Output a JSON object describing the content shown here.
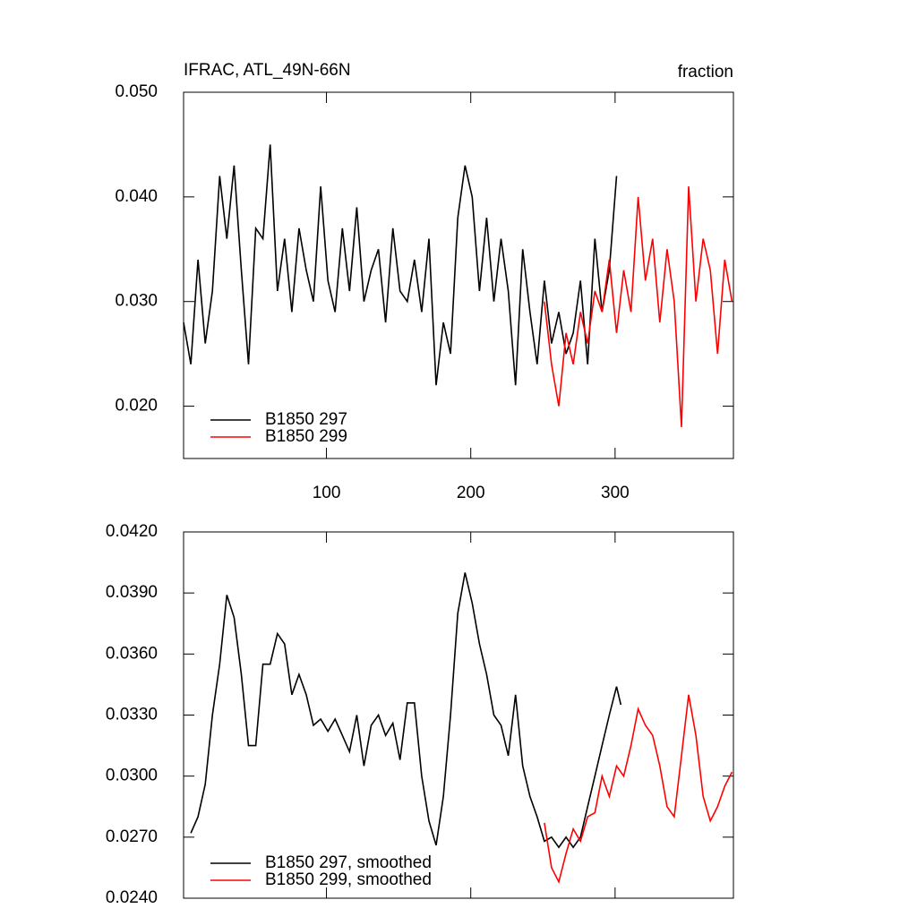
{
  "chart_data": [
    {
      "type": "line",
      "title": "IFRAC, ATL_49N-66N",
      "subtitle": "fraction",
      "xlim": [
        1,
        382
      ],
      "xticks": [
        100,
        200,
        300
      ],
      "ylim": [
        0.015,
        0.05
      ],
      "yticks": [
        {
          "value": 0.02,
          "label": "0.020"
        },
        {
          "value": 0.03,
          "label": "0.030"
        },
        {
          "value": 0.04,
          "label": "0.040"
        },
        {
          "value": 0.05,
          "label": "0.050"
        }
      ],
      "series": [
        {
          "name": "B1850 297",
          "color": "#000000",
          "x": [
            1,
            6,
            11,
            16,
            21,
            26,
            31,
            36,
            41,
            46,
            51,
            56,
            61,
            66,
            71,
            76,
            81,
            86,
            91,
            96,
            101,
            106,
            111,
            116,
            121,
            126,
            131,
            136,
            141,
            146,
            151,
            156,
            161,
            166,
            171,
            176,
            181,
            186,
            191,
            196,
            201,
            206,
            211,
            216,
            221,
            226,
            231,
            236,
            241,
            246,
            251,
            256,
            261,
            266,
            271,
            276,
            281,
            286,
            291,
            296,
            301
          ],
          "values": [
            0.028,
            0.024,
            0.034,
            0.026,
            0.031,
            0.042,
            0.036,
            0.043,
            0.033,
            0.024,
            0.037,
            0.036,
            0.045,
            0.031,
            0.036,
            0.029,
            0.037,
            0.033,
            0.03,
            0.041,
            0.032,
            0.029,
            0.037,
            0.031,
            0.039,
            0.03,
            0.033,
            0.035,
            0.028,
            0.037,
            0.031,
            0.03,
            0.034,
            0.029,
            0.036,
            0.022,
            0.028,
            0.025,
            0.038,
            0.043,
            0.04,
            0.031,
            0.038,
            0.03,
            0.036,
            0.031,
            0.022,
            0.035,
            0.029,
            0.024,
            0.032,
            0.026,
            0.029,
            0.025,
            0.027,
            0.032,
            0.024,
            0.036,
            0.029,
            0.033,
            0.042
          ]
        },
        {
          "name": "B1850 299",
          "color": "#ff0000",
          "x": [
            251,
            256,
            261,
            266,
            271,
            276,
            281,
            286,
            291,
            296,
            301,
            306,
            311,
            316,
            321,
            326,
            331,
            336,
            341,
            346,
            351,
            356,
            361,
            366,
            371,
            376,
            381
          ],
          "values": [
            0.03,
            0.024,
            0.02,
            0.027,
            0.024,
            0.029,
            0.026,
            0.031,
            0.029,
            0.034,
            0.027,
            0.033,
            0.029,
            0.04,
            0.032,
            0.036,
            0.028,
            0.035,
            0.03,
            0.018,
            0.041,
            0.03,
            0.036,
            0.033,
            0.025,
            0.034,
            0.03
          ]
        }
      ]
    },
    {
      "type": "line",
      "xlim": [
        1,
        382
      ],
      "xticks": [
        100,
        200,
        300
      ],
      "ylim": [
        0.024,
        0.042
      ],
      "yticks": [
        {
          "value": 0.024,
          "label": "0.0240"
        },
        {
          "value": 0.027,
          "label": "0.0270"
        },
        {
          "value": 0.03,
          "label": "0.0300"
        },
        {
          "value": 0.033,
          "label": "0.0330"
        },
        {
          "value": 0.036,
          "label": "0.0360"
        },
        {
          "value": 0.039,
          "label": "0.0390"
        },
        {
          "value": 0.042,
          "label": "0.0420"
        }
      ],
      "series": [
        {
          "name": "B1850 297, smoothed",
          "color": "#000000",
          "x": [
            6,
            11,
            16,
            21,
            26,
            31,
            36,
            41,
            46,
            51,
            56,
            61,
            66,
            71,
            76,
            81,
            86,
            91,
            96,
            101,
            106,
            111,
            116,
            121,
            126,
            131,
            136,
            141,
            146,
            151,
            156,
            161,
            166,
            171,
            176,
            181,
            186,
            191,
            196,
            201,
            206,
            211,
            216,
            221,
            226,
            231,
            236,
            241,
            246,
            251,
            256,
            261,
            266,
            271,
            276,
            281,
            286,
            291,
            296,
            301,
            304
          ],
          "values": [
            0.0272,
            0.028,
            0.0296,
            0.033,
            0.0355,
            0.0389,
            0.0378,
            0.035,
            0.0315,
            0.0315,
            0.0355,
            0.0355,
            0.037,
            0.0365,
            0.034,
            0.035,
            0.034,
            0.0325,
            0.0328,
            0.0322,
            0.0328,
            0.032,
            0.0312,
            0.033,
            0.0305,
            0.0325,
            0.033,
            0.032,
            0.0326,
            0.0308,
            0.0336,
            0.0336,
            0.03,
            0.0278,
            0.0266,
            0.029,
            0.033,
            0.038,
            0.04,
            0.0385,
            0.0365,
            0.035,
            0.033,
            0.0325,
            0.031,
            0.034,
            0.0305,
            0.029,
            0.028,
            0.0268,
            0.027,
            0.0265,
            0.027,
            0.0265,
            0.027,
            0.0285,
            0.03,
            0.0315,
            0.033,
            0.0344,
            0.0335
          ]
        },
        {
          "name": "B1850 299, smoothed",
          "color": "#ff0000",
          "x": [
            251,
            256,
            261,
            266,
            271,
            276,
            281,
            286,
            291,
            296,
            301,
            306,
            311,
            316,
            321,
            326,
            331,
            336,
            341,
            346,
            351,
            356,
            361,
            366,
            371,
            376,
            381
          ],
          "values": [
            0.0277,
            0.0255,
            0.0248,
            0.0262,
            0.0274,
            0.0268,
            0.028,
            0.0282,
            0.03,
            0.029,
            0.0305,
            0.03,
            0.0315,
            0.0333,
            0.0325,
            0.032,
            0.0305,
            0.0285,
            0.028,
            0.031,
            0.034,
            0.032,
            0.029,
            0.0278,
            0.0285,
            0.0295,
            0.0302
          ]
        }
      ]
    }
  ]
}
